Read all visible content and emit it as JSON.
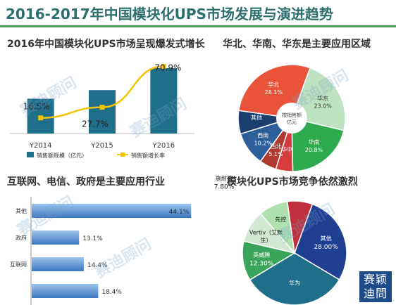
{
  "main_title": "2016-2017年中国模块化UPS市场发展与演进趋势",
  "watermark": "赛迪顾问",
  "stamp": {
    "line1": "赛颖",
    "line2": "迪問"
  },
  "chart_data": [
    {
      "type": "bar",
      "title": "2016年中国模块化UPS市场呈现爆发式增长",
      "categories": [
        "Y2014",
        "Y2015",
        "Y2016"
      ],
      "series": [
        {
          "name": "销售额规模（亿元）",
          "values": [
            16.5,
            20.6,
            31.0
          ],
          "color": "#1f6f8b"
        },
        {
          "name": "销售额增长率",
          "type": "line",
          "values": [
            16.5,
            27.7,
            70.9
          ],
          "color": "#f5c400"
        }
      ],
      "data_labels": [
        "16.5%",
        "27.7%",
        "70.9%"
      ],
      "legend": "bottom"
    },
    {
      "type": "pie",
      "title": "华北、华南、华东是主要应用区域",
      "center_label": "按销售额亿元",
      "slices": [
        {
          "label": "华东",
          "value": 23.0,
          "pct_label": "23.0%",
          "color": "#bfe2c0"
        },
        {
          "label": "华南",
          "value": 20.8,
          "pct_label": "20.8%",
          "color": "#2eaa4f"
        },
        {
          "label": "华中",
          "value": 5.1,
          "pct_label": "",
          "color": "#d73c3c"
        },
        {
          "label": "西北",
          "value": 5.1,
          "pct_label": "5.1%",
          "color": "#b03a2e"
        },
        {
          "label": "西南",
          "value": 10.2,
          "pct_label": "10.2%",
          "color": "#2d5f9a"
        },
        {
          "label": "其他",
          "value": 7.0,
          "pct_label": "",
          "color": "#1a3f6e"
        },
        {
          "label": "华北",
          "value": 28.1,
          "pct_label": "28.1%",
          "color": "#e8533a"
        }
      ]
    },
    {
      "type": "bar",
      "orientation": "horizontal",
      "title": "互联网、电信、政府是主要应用行业",
      "categories": [
        "其他",
        "政府",
        "互联网",
        ""
      ],
      "values": [
        44.1,
        13.1,
        14.4,
        18.4
      ],
      "value_labels": [
        "44.1%",
        "13.1%",
        "14.4%",
        "18.4%"
      ],
      "color": "#3b78c2"
    },
    {
      "type": "pie",
      "title": "模块化UPS市场竞争依然激烈",
      "slices": [
        {
          "label": "其他",
          "value": 28.0,
          "pct_label": "28.00%",
          "color": "#1f3f93"
        },
        {
          "label": "华为",
          "value": 32.8,
          "pct_label": "",
          "color": "#1f6f8b"
        },
        {
          "label": "英威腾",
          "value": 12.3,
          "pct_label": "12.30%",
          "color": "#3aa55a"
        },
        {
          "label": "Vertiv（艾默生）",
          "value": 10.0,
          "pct_label": "",
          "color": "#d3e8d3"
        },
        {
          "label": "先控",
          "value": 9.1,
          "pct_label": "",
          "color": "#aee0b0"
        },
        {
          "label": "施耐德",
          "value": 7.8,
          "pct_label": "7.80%",
          "color": "#c0303c"
        }
      ]
    }
  ]
}
